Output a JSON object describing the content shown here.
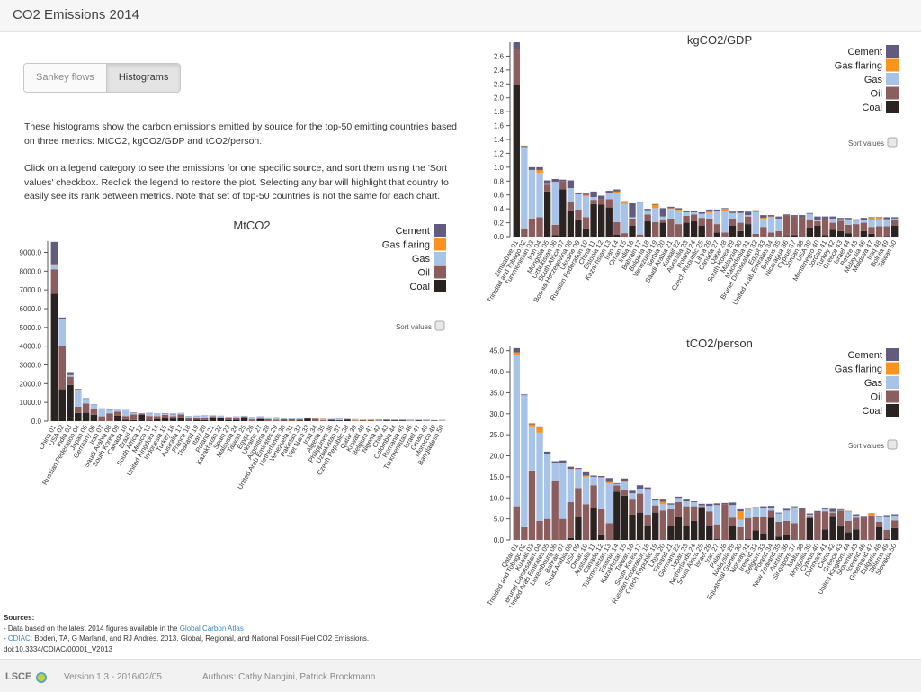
{
  "app": {
    "title": "CO2 Emissions 2014"
  },
  "tabs": [
    {
      "label": "Sankey flows",
      "active": false
    },
    {
      "label": "Histograms",
      "active": true
    }
  ],
  "description": {
    "p1": "These histograms show the carbon emissions emitted by source for the top-50 emitting countries based on three metrics: MtCO2, kgCO2/GDP and tCO2/person.",
    "p2": "Click on a legend category to see the emissions for one specific source, and sort them using the 'Sort values' checkbox. Reclick the legend to restore the plot. Selecting any bar will highlight that country to easily see its rank between metrics. Note that set of top-50 countries is not the same for each chart."
  },
  "colors": {
    "Cement": "#625a7f",
    "Gas flaring": "#f7931e",
    "Gas": "#a8c3e8",
    "Oil": "#8c5d5d",
    "Coal": "#2b2322"
  },
  "legend": [
    "Cement",
    "Gas flaring",
    "Gas",
    "Oil",
    "Coal"
  ],
  "sort_label": "Sort values",
  "chart_data": [
    {
      "type": "bar",
      "stacked": true,
      "title": "MtCO2",
      "grid": false,
      "legend_position": "top-right",
      "ylim": [
        0,
        9600
      ],
      "yticks": [
        0,
        1000,
        2000,
        3000,
        4000,
        5000,
        6000,
        7000,
        8000,
        9000
      ],
      "tick_decimals": 1,
      "categories": [
        "China 01",
        "USA 02",
        "India 03",
        "Russian Federation 04",
        "Japan 05",
        "Germany 06",
        "Iran 07",
        "Saudi Arabia 08",
        "South Korea 09",
        "Canada 10",
        "Brazil 11",
        "South Africa 12",
        "Mexico 13",
        "United Kingdom 14",
        "Indonesia 15",
        "Turkey 16",
        "Australia 17",
        "France 18",
        "Thailand 19",
        "Italy 20",
        "Poland 21",
        "Kazakhstan 22",
        "Spain 23",
        "Malaysia 24",
        "Taiwan 25",
        "Egypt 26",
        "Ukraine 27",
        "Argentina 28",
        "United Arab Emirates 29",
        "Netherlands 30",
        "Venezuela 31",
        "Pakistan 32",
        "Viet Nam 33",
        "Iraq 34",
        "Algeria 35",
        "Philippines 36",
        "Uzbekistan 37",
        "Czech Republic 38",
        "Qatar 39",
        "Kuwait 40",
        "Belgium 41",
        "Nigeria 42",
        "Chile 43",
        "Colombia 44",
        "Romania 45",
        "Turkmenistan 46",
        "Israel 47",
        "Oman 48",
        "Morocco 49",
        "Bangladesh 50"
      ],
      "series": [
        {
          "name": "Coal",
          "values": [
            6800,
            1700,
            1930,
            440,
            450,
            345,
            20,
            0,
            300,
            77,
            60,
            350,
            40,
            115,
            170,
            140,
            195,
            35,
            70,
            50,
            200,
            160,
            48,
            68,
            150,
            3,
            105,
            8,
            4,
            30,
            2,
            40,
            120,
            0,
            1,
            45,
            40,
            75,
            0,
            0,
            17,
            0,
            40,
            27,
            35,
            0,
            25,
            0,
            15,
            3
          ]
        },
        {
          "name": "Oil",
          "values": [
            1300,
            2300,
            440,
            330,
            490,
            300,
            240,
            420,
            210,
            200,
            300,
            60,
            240,
            160,
            170,
            125,
            170,
            160,
            100,
            130,
            70,
            50,
            115,
            75,
            100,
            90,
            40,
            95,
            70,
            80,
            100,
            50,
            40,
            120,
            45,
            45,
            15,
            25,
            35,
            60,
            45,
            30,
            40,
            35,
            30,
            20,
            30,
            25,
            30,
            10
          ]
        },
        {
          "name": "Gas",
          "values": [
            250,
            1450,
            85,
            900,
            250,
            245,
            370,
            160,
            120,
            320,
            70,
            0,
            140,
            150,
            70,
            100,
            85,
            80,
            110,
            130,
            40,
            85,
            65,
            110,
            30,
            105,
            120,
            100,
            125,
            80,
            60,
            60,
            10,
            15,
            65,
            5,
            90,
            30,
            65,
            35,
            30,
            20,
            8,
            25,
            25,
            65,
            25,
            55,
            0,
            50
          ]
        },
        {
          "name": "Gas flaring",
          "values": [
            20,
            8,
            0,
            30,
            0,
            0,
            15,
            3,
            0,
            0,
            0,
            0,
            3,
            0,
            2,
            0,
            0,
            0,
            0,
            0,
            0,
            5,
            0,
            3,
            0,
            2,
            0,
            2,
            5,
            0,
            8,
            0,
            0,
            12,
            15,
            0,
            3,
            0,
            4,
            0,
            0,
            40,
            0,
            0,
            0,
            3,
            0,
            5,
            0,
            0
          ]
        },
        {
          "name": "Cement",
          "values": [
            1190,
            70,
            160,
            25,
            30,
            15,
            35,
            27,
            20,
            5,
            30,
            10,
            20,
            3,
            20,
            38,
            4,
            7,
            15,
            10,
            8,
            3,
            10,
            7,
            10,
            17,
            5,
            4,
            11,
            1,
            3,
            15,
            25,
            6,
            8,
            12,
            5,
            4,
            5,
            2,
            3,
            5,
            2,
            5,
            5,
            2,
            2,
            3,
            8,
            8
          ]
        }
      ]
    },
    {
      "type": "bar",
      "stacked": true,
      "title": "kgCO2/GDP",
      "grid": false,
      "legend_position": "top-right",
      "ylim": [
        0,
        2.8
      ],
      "yticks": [
        0,
        0.2,
        0.4,
        0.6,
        0.8,
        1.0,
        1.2,
        1.4,
        1.6,
        1.8,
        2.0,
        2.2,
        2.4,
        2.6
      ],
      "tick_decimals": 1,
      "categories": [
        "Zimbabwe 01",
        "Trinidad and Tobago 02",
        "Turkmenistan 03",
        "Iran 04",
        "Mongolia 05",
        "Uzbekistan 06",
        "South Africa 07",
        "Bosnia-Herzegovina 08",
        "Ukraine 09",
        "Russian Federation 10",
        "China 11",
        "Estonia 12",
        "Kazakhstan 13",
        "Iran 14",
        "Oman 15",
        "India 16",
        "Bahrain 17",
        "Bulgaria 18",
        "Venezuela 19",
        "Serbia 20",
        "Saudi Arabia 21",
        "Kuwait 22",
        "Australia 23",
        "Poland 24",
        "Czech Republic 25",
        "Libya 26",
        "Canada 27",
        "Qatar 28",
        "South Korea 29",
        "Malaysia 30",
        "Macedonia 31",
        "Brunei Darussalam 32",
        "Egypt 33",
        "United Arab Emirates 34",
        "Belarus 35",
        "Nicaragua 36",
        "Cyprus 37",
        "Jordan 38",
        "USA 39",
        "Montenegro 40",
        "Jordan 41",
        "Turkey 42",
        "Greece 43",
        "Israel 44",
        "Belize 45",
        "Malaysia 46",
        "Moldova 47",
        "Iraq 48",
        "Bolivia 49",
        "Taiwan 50"
      ],
      "series": [
        {
          "name": "Coal",
          "values": [
            2.18,
            0,
            0,
            0,
            0.65,
            0.02,
            0.68,
            0.38,
            0.25,
            0.12,
            0.47,
            0.46,
            0.42,
            0.03,
            0,
            0.16,
            0,
            0.22,
            0,
            0.2,
            0,
            0,
            0.2,
            0.22,
            0.16,
            0,
            0.06,
            0,
            0.16,
            0.08,
            0.18,
            0,
            0,
            0,
            0,
            0.01,
            0.02,
            0,
            0.13,
            0.16,
            0.02,
            0.1,
            0.08,
            0.05,
            0,
            0.08,
            0.04,
            0,
            0.01,
            0.16
          ]
        },
        {
          "name": "Oil",
          "values": [
            0.52,
            0.12,
            0.26,
            0.28,
            0.1,
            0.15,
            0.12,
            0.12,
            0.14,
            0.16,
            0.06,
            0.08,
            0.12,
            0.18,
            0.05,
            0.1,
            0.03,
            0.1,
            0.21,
            0.05,
            0.26,
            0.18,
            0.1,
            0.1,
            0.11,
            0.26,
            0.12,
            0.06,
            0.1,
            0.12,
            0.11,
            0.04,
            0.14,
            0.06,
            0.08,
            0.29,
            0.27,
            0.28,
            0.12,
            0.06,
            0.24,
            0.1,
            0.15,
            0.12,
            0.18,
            0.12,
            0.1,
            0.15,
            0.14,
            0.08
          ]
        },
        {
          "name": "Gas",
          "values": [
            0,
            1.16,
            0.7,
            0.64,
            0.02,
            0.62,
            0,
            0.2,
            0.22,
            0.3,
            0.04,
            0,
            0.08,
            0.42,
            0.42,
            0.02,
            0.46,
            0.06,
            0.2,
            0.04,
            0.14,
            0.2,
            0.05,
            0.03,
            0.06,
            0.08,
            0.18,
            0.3,
            0.08,
            0.14,
            0.02,
            0.31,
            0.12,
            0.22,
            0.18,
            0,
            0,
            0,
            0.08,
            0.02,
            0,
            0.06,
            0.02,
            0.08,
            0.05,
            0.04,
            0.1,
            0.1,
            0.1,
            0.02
          ]
        },
        {
          "name": "Gas flaring",
          "values": [
            0,
            0.02,
            0,
            0.04,
            0,
            0,
            0,
            0,
            0,
            0.02,
            0,
            0,
            0.01,
            0.02,
            0.02,
            0,
            0,
            0,
            0.05,
            0,
            0.01,
            0.01,
            0,
            0,
            0,
            0.03,
            0.01,
            0.04,
            0,
            0,
            0,
            0.02,
            0.01,
            0.01,
            0,
            0,
            0,
            0,
            0,
            0,
            0,
            0,
            0,
            0,
            0,
            0,
            0.03,
            0.02,
            0,
            0
          ]
        },
        {
          "name": "Cement",
          "values": [
            0.1,
            0.01,
            0.04,
            0.04,
            0.04,
            0.04,
            0.02,
            0.11,
            0.02,
            0.02,
            0.08,
            0.05,
            0.03,
            0.03,
            0.02,
            0.2,
            0.01,
            0.02,
            0.01,
            0.12,
            0.02,
            0.02,
            0.02,
            0.02,
            0.02,
            0.02,
            0.02,
            0.01,
            0.02,
            0.03,
            0.05,
            0.01,
            0.04,
            0.02,
            0.03,
            0.02,
            0.02,
            0.03,
            0.01,
            0.05,
            0.03,
            0.03,
            0.02,
            0.02,
            0.02,
            0.03,
            0.01,
            0.01,
            0.03,
            0.02
          ]
        }
      ]
    },
    {
      "type": "bar",
      "stacked": true,
      "title": "tCO2/person",
      "grid": false,
      "legend_position": "top-right",
      "ylim": [
        0,
        46
      ],
      "yticks": [
        0,
        5,
        10,
        15,
        20,
        25,
        30,
        35,
        40,
        45
      ],
      "tick_decimals": 1,
      "categories": [
        "Qatar 01",
        "Trinidad and Tobago 02",
        "Kuwait 03",
        "Brunei Darussalam 04",
        "United Arab Emirates 05",
        "Luxembourg 06",
        "Bahrain 07",
        "Saudi Arabia 08",
        "USA 09",
        "Oman 10",
        "Australia 11",
        "Canada 12",
        "Turkmenistan 13",
        "Estonia 14",
        "Kazakhstan 15",
        "Taiwan 16",
        "South Korea 17",
        "Russian Federation 18",
        "Czech Republic 19",
        "Libya 20",
        "Finland 21",
        "Germany 22",
        "Japan 23",
        "Netherlands 24",
        "South Africa 25",
        "Israel 26",
        "Iran 27",
        "Palau 28",
        "Malaysia 29",
        "Equatorial Guinea 30",
        "Norway 31",
        "Ireland 32",
        "Belgium 33",
        "Poland 34",
        "New Zealand 35",
        "Austria 36",
        "Singapore 37",
        "Malta 38",
        "Mongolia 39",
        "Cyprus 40",
        "Denmark 41",
        "China 42",
        "Greece 43",
        "United Kingdom 44",
        "Slovenia 45",
        "Iceland 46",
        "Greenland 47",
        "Bulgaria 48",
        "Belarus 49",
        "Slovakia 50"
      ],
      "series": [
        {
          "name": "Coal",
          "values": [
            0,
            0,
            0,
            0,
            0,
            0,
            0,
            0.5,
            5.5,
            0,
            7.5,
            1.3,
            0,
            11.5,
            10.5,
            6,
            6.5,
            3.5,
            6.5,
            0,
            3.5,
            5.5,
            3.5,
            4.5,
            7.5,
            3.5,
            0.2,
            0,
            3.3,
            0,
            0.2,
            2.3,
            1.5,
            5.3,
            0.8,
            1.2,
            0,
            0,
            5.2,
            0,
            2.5,
            5.7,
            3.2,
            1.8,
            2.5,
            0,
            0,
            3,
            0.2,
            2.8
          ]
        },
        {
          "name": "Oil",
          "values": [
            8,
            3,
            16.5,
            4.5,
            5,
            14,
            5,
            8.5,
            6.8,
            8.5,
            5.5,
            6,
            4,
            1.5,
            1.5,
            3.6,
            4.5,
            2.5,
            1.7,
            7,
            3.8,
            3.5,
            4.5,
            3.5,
            0.5,
            3.3,
            3.5,
            8.5,
            2,
            3,
            5,
            3.3,
            4,
            1.7,
            3.5,
            3.3,
            4,
            7.3,
            0.5,
            6.5,
            4.3,
            0.8,
            3.8,
            2.7,
            2.8,
            5.5,
            5.8,
            1.3,
            2.2,
            1.8
          ]
        },
        {
          "name": "Gas",
          "values": [
            36,
            31.4,
            10.5,
            21,
            15.5,
            4.2,
            13.3,
            7.8,
            4.5,
            6.5,
            2,
            7.5,
            9.5,
            0.3,
            1.8,
            1.5,
            1.2,
            6,
            1.2,
            1.5,
            1.1,
            1,
            1.2,
            1,
            0.2,
            1.3,
            4.5,
            0,
            3,
            1.8,
            2,
            2,
            2.2,
            0.7,
            2,
            2.5,
            3.8,
            0,
            0.3,
            0,
            0.5,
            0.2,
            0.1,
            2.2,
            0.5,
            0,
            0,
            1.2,
            3.2,
            1.2
          ]
        },
        {
          "name": "Gas flaring",
          "values": [
            0.6,
            0,
            0.5,
            1.2,
            0,
            0,
            0,
            0.1,
            0.1,
            0.3,
            0,
            0.1,
            0.3,
            0,
            0.3,
            0,
            0,
            0.2,
            0,
            0.6,
            0,
            0,
            0,
            0,
            0,
            0,
            0.1,
            0,
            0,
            2,
            0.1,
            0,
            0,
            0,
            0,
            0,
            0,
            0,
            0,
            0,
            0,
            0,
            0,
            0.1,
            0,
            0,
            0.6,
            0,
            0,
            0
          ]
        },
        {
          "name": "Cement",
          "values": [
            1,
            0.2,
            0.2,
            0.3,
            0.5,
            0.5,
            0.6,
            0.5,
            0.2,
            1,
            0.3,
            0.3,
            0.9,
            0.2,
            0.5,
            0.6,
            0.8,
            0.3,
            0.3,
            0.5,
            0.3,
            0.3,
            0.4,
            0.2,
            0.4,
            0.5,
            0.4,
            0.3,
            0.6,
            0.5,
            0.1,
            0.2,
            0.3,
            0.4,
            0.2,
            0.4,
            0.2,
            0.2,
            0.3,
            0.4,
            0.2,
            0.7,
            0.2,
            0.1,
            0.3,
            0.2,
            0,
            0.2,
            0.3,
            0.3
          ]
        }
      ]
    }
  ],
  "sources": {
    "heading": "Sources:",
    "line1_prefix": "- Data based on the latest 2014 figures available in the ",
    "line1_link": "Global Carbon Atlas",
    "line2_prefix": "- ",
    "line2_link": "CDIAC",
    "line2_text": ": Boden, TA, G Marland, and RJ Andres. 2013. Global, Regional, and National Fossil-Fuel CO2 Emissions.",
    "line3": "doi:10.3334/CDIAC/00001_V2013"
  },
  "footer": {
    "brand": "LSCE",
    "version": "Version 1.3 - 2016/02/05",
    "authors": "Authors: Cathy Nangini, Patrick Brockmann"
  }
}
